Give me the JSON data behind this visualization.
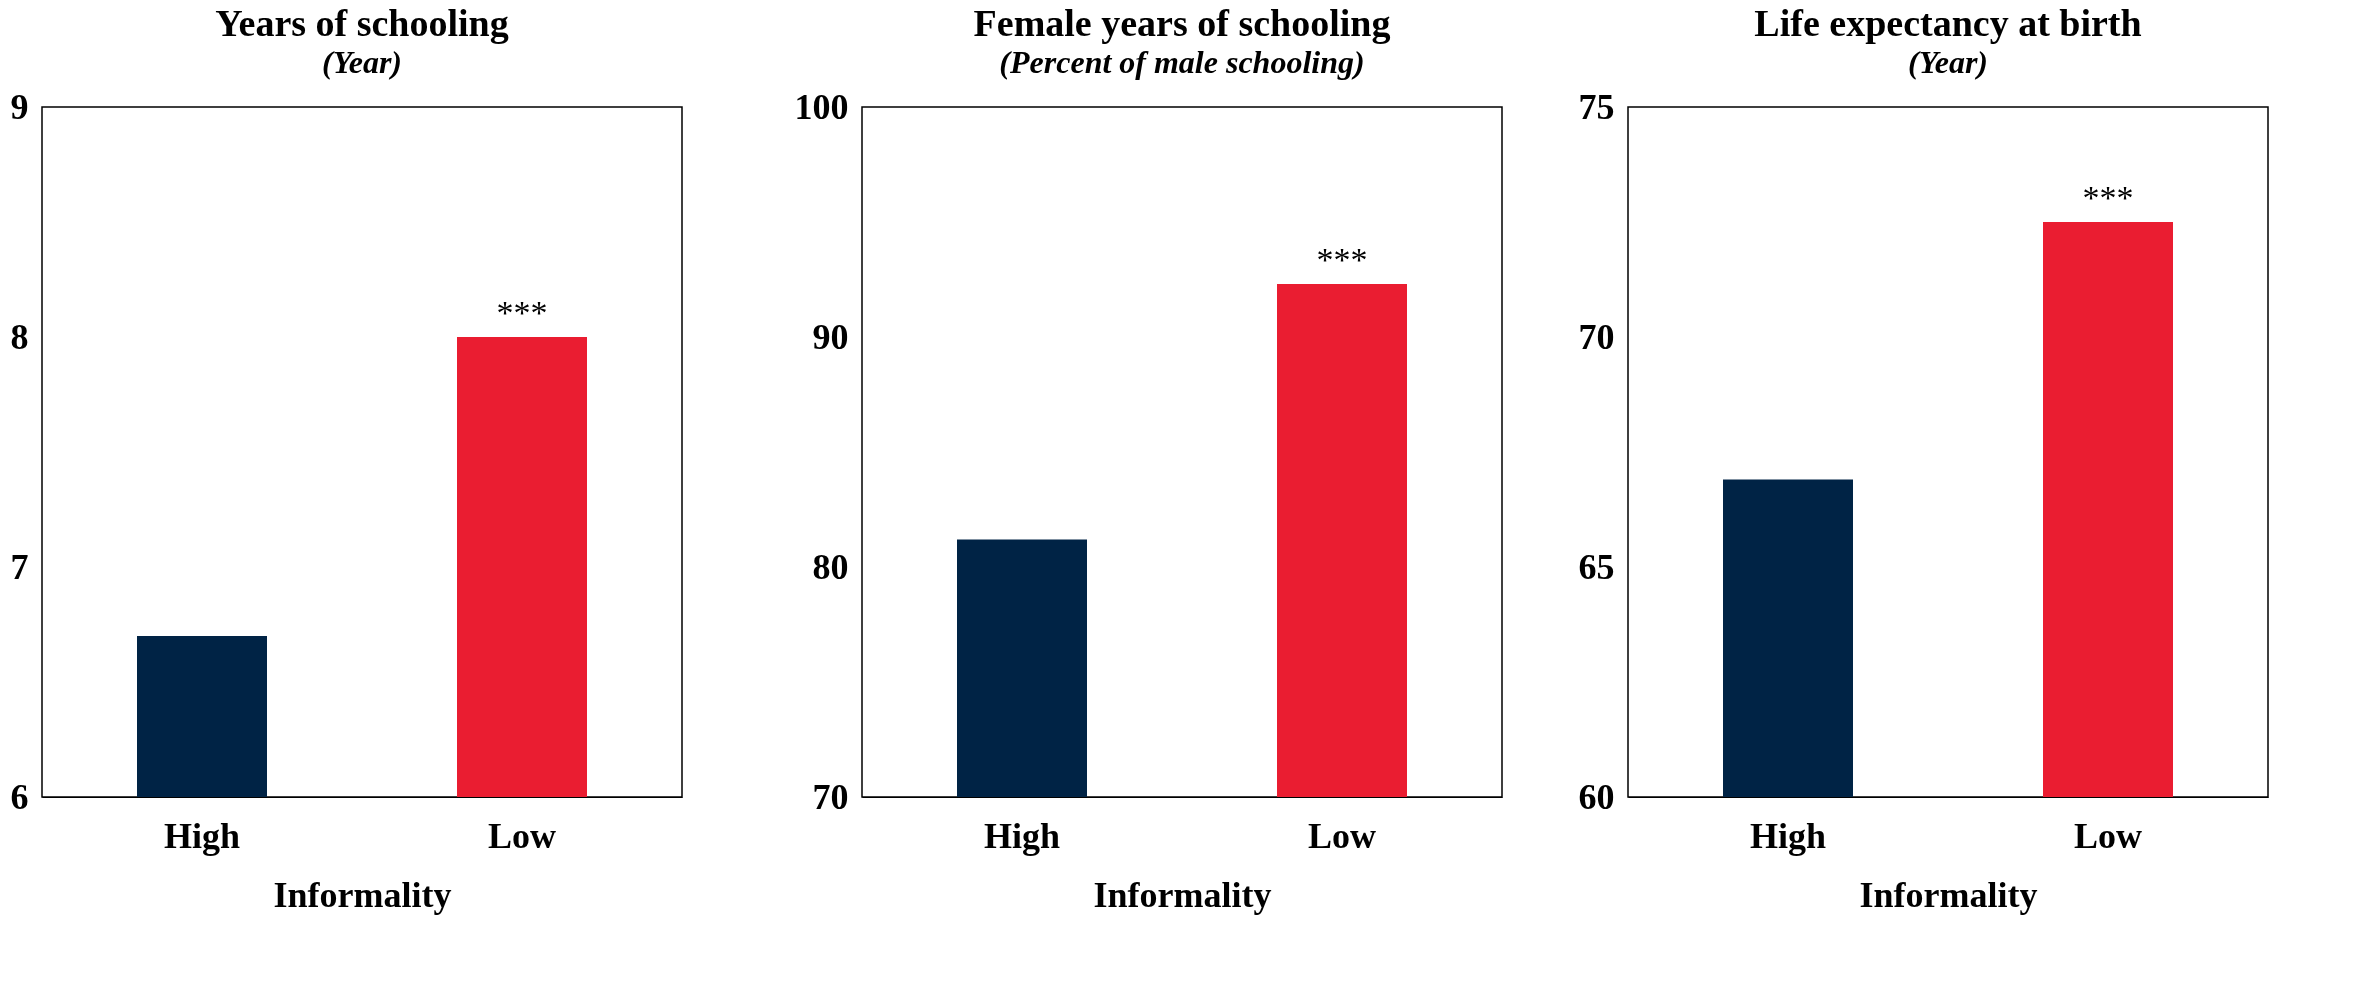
{
  "chart_data": [
    {
      "type": "bar",
      "title": "Years of schooling",
      "subtitle": "(Year)",
      "xlabel": "Informality",
      "categories": [
        "High",
        "Low"
      ],
      "values": [
        6.7,
        8.0
      ],
      "colors": [
        "#002345",
        "#ea1d31"
      ],
      "ylim": [
        6,
        9
      ],
      "yticks": [
        6,
        7,
        8,
        9
      ],
      "annotations": [
        {
          "text": "***",
          "x": "Low",
          "y": 8.0
        }
      ]
    },
    {
      "type": "bar",
      "title": "Female years of schooling",
      "subtitle": "(Percent of male schooling)",
      "xlabel": "Informality",
      "categories": [
        "High",
        "Low"
      ],
      "values": [
        81.2,
        92.3
      ],
      "colors": [
        "#002345",
        "#ea1d31"
      ],
      "ylim": [
        70,
        100
      ],
      "yticks": [
        70,
        80,
        90,
        100
      ],
      "annotations": [
        {
          "text": "***",
          "x": "Low",
          "y": 92.3
        }
      ]
    },
    {
      "type": "bar",
      "title": "Life expectancy at birth",
      "subtitle": "(Year)",
      "xlabel": "Informality",
      "categories": [
        "High",
        "Low"
      ],
      "values": [
        66.9,
        72.5
      ],
      "colors": [
        "#002345",
        "#ea1d31"
      ],
      "ylim": [
        60,
        75
      ],
      "yticks": [
        60,
        65,
        70,
        75
      ],
      "annotations": [
        {
          "text": "***",
          "x": "Low",
          "y": 72.5
        }
      ]
    }
  ]
}
